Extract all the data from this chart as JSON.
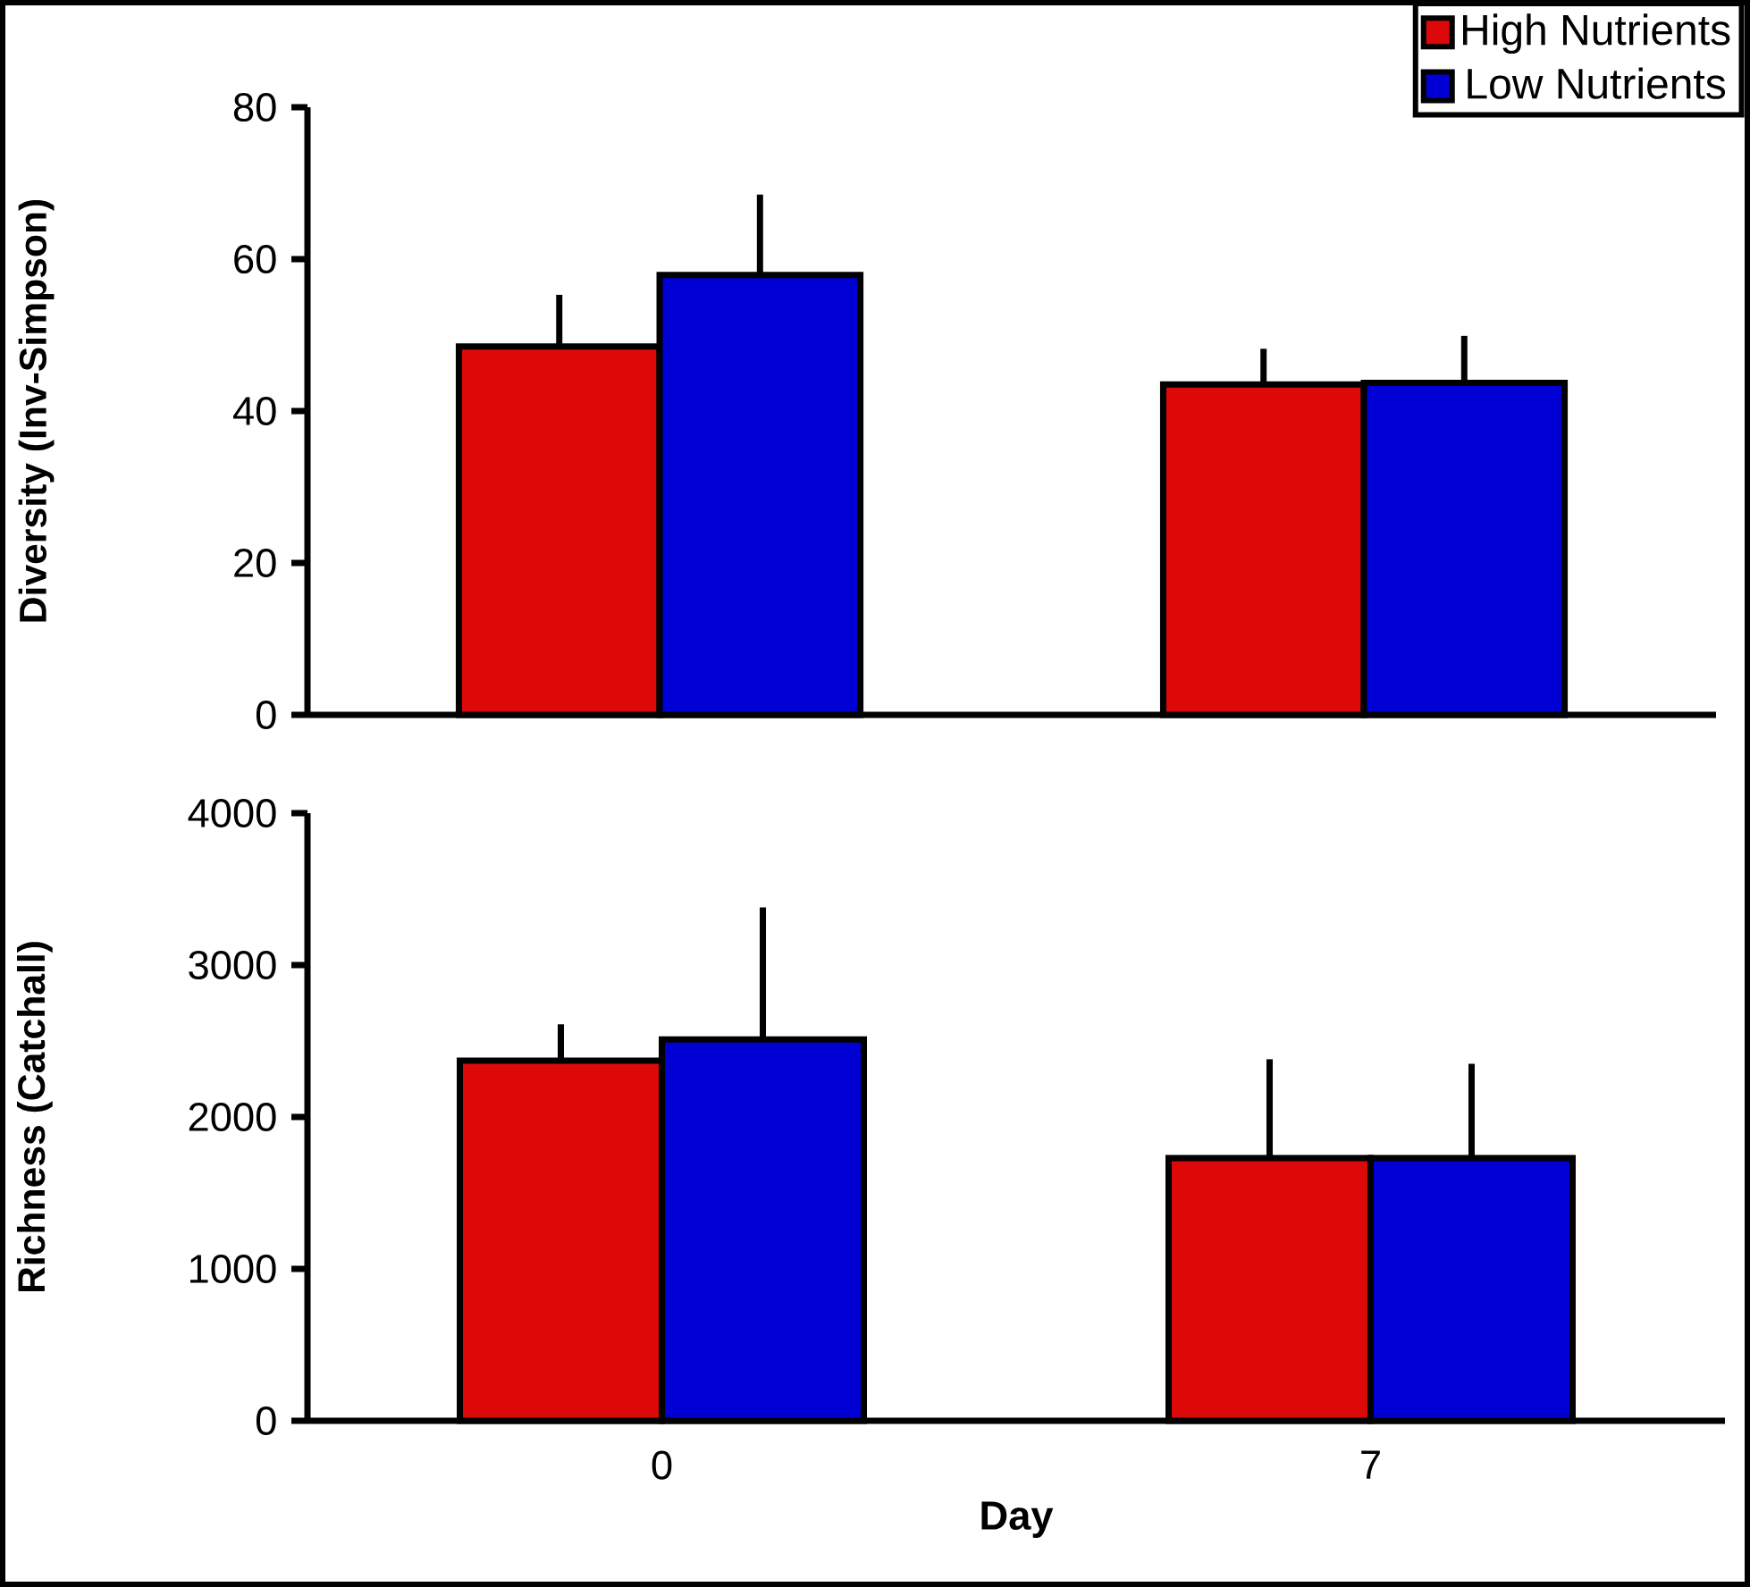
{
  "chart_data": [
    {
      "type": "bar",
      "ylabel": "Diversity (Inv-Simpson)",
      "categories": [
        "0",
        "7"
      ],
      "ylim": [
        0,
        80
      ],
      "yticks": [
        0,
        20,
        40,
        60,
        80
      ],
      "tick_labels": "y",
      "legend": "top right",
      "series": [
        {
          "name": "High Nutrients",
          "color": "#dd0808",
          "values": [
            48.5,
            43.5
          ],
          "errors": [
            [
              48.5,
              55.3
            ],
            [
              43.5,
              48.2
            ]
          ]
        },
        {
          "name": "Low Nutrients",
          "color": "#0000d4",
          "values": [
            57.9,
            43.7
          ],
          "errors": [
            [
              57.9,
              68.5
            ],
            [
              43.7,
              49.9
            ]
          ]
        }
      ]
    },
    {
      "type": "bar",
      "ylabel": "Richness (Catchall)",
      "xlabel": "Day",
      "categories": [
        "0",
        "7"
      ],
      "ylim": [
        0,
        4000
      ],
      "yticks": [
        0,
        1000,
        2000,
        3000,
        4000
      ],
      "series": [
        {
          "color": "#dd0808",
          "values": [
            2370,
            1730
          ],
          "errors": [
            [
              2370,
              2610
            ],
            [
              1730,
              2380
            ]
          ]
        },
        {
          "color": "#0000d4",
          "values": [
            2510,
            1730
          ],
          "errors": [
            [
              2510,
              3380
            ],
            [
              1730,
              2350
            ]
          ]
        }
      ]
    }
  ]
}
